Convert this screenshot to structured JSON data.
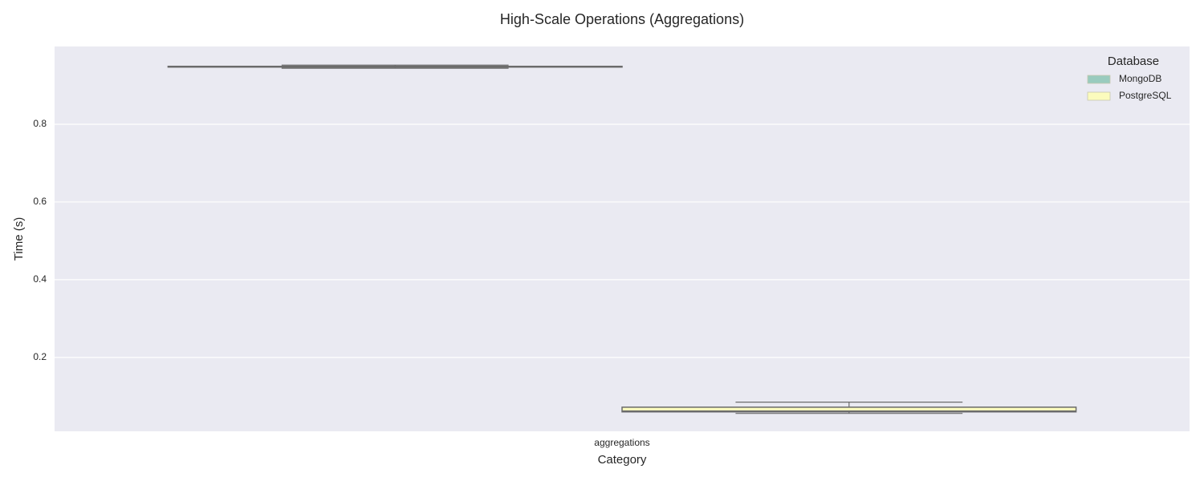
{
  "chart_data": {
    "type": "box",
    "title": "High-Scale Operations (Aggregations)",
    "x_label": "Category",
    "y_label": "Time (s)",
    "categories": [
      "aggregations"
    ],
    "legend_title": "Database",
    "legend_position": "upper right",
    "series": [
      {
        "name": "MongoDB",
        "color": "#99cbbe",
        "stats": [
          {
            "min": 0.944,
            "q1": 0.947,
            "median": 0.948,
            "q3": 0.949,
            "max": 0.952
          }
        ]
      },
      {
        "name": "PostgreSQL",
        "color": "#fbfbbd",
        "stats": [
          {
            "min": 0.056,
            "q1": 0.06,
            "median": 0.062,
            "q3": 0.072,
            "max": 0.085
          }
        ]
      }
    ],
    "ylim": [
      0.01,
      1.0
    ],
    "yticks": [
      0.2,
      0.4,
      0.6,
      0.8
    ],
    "grid": true
  }
}
